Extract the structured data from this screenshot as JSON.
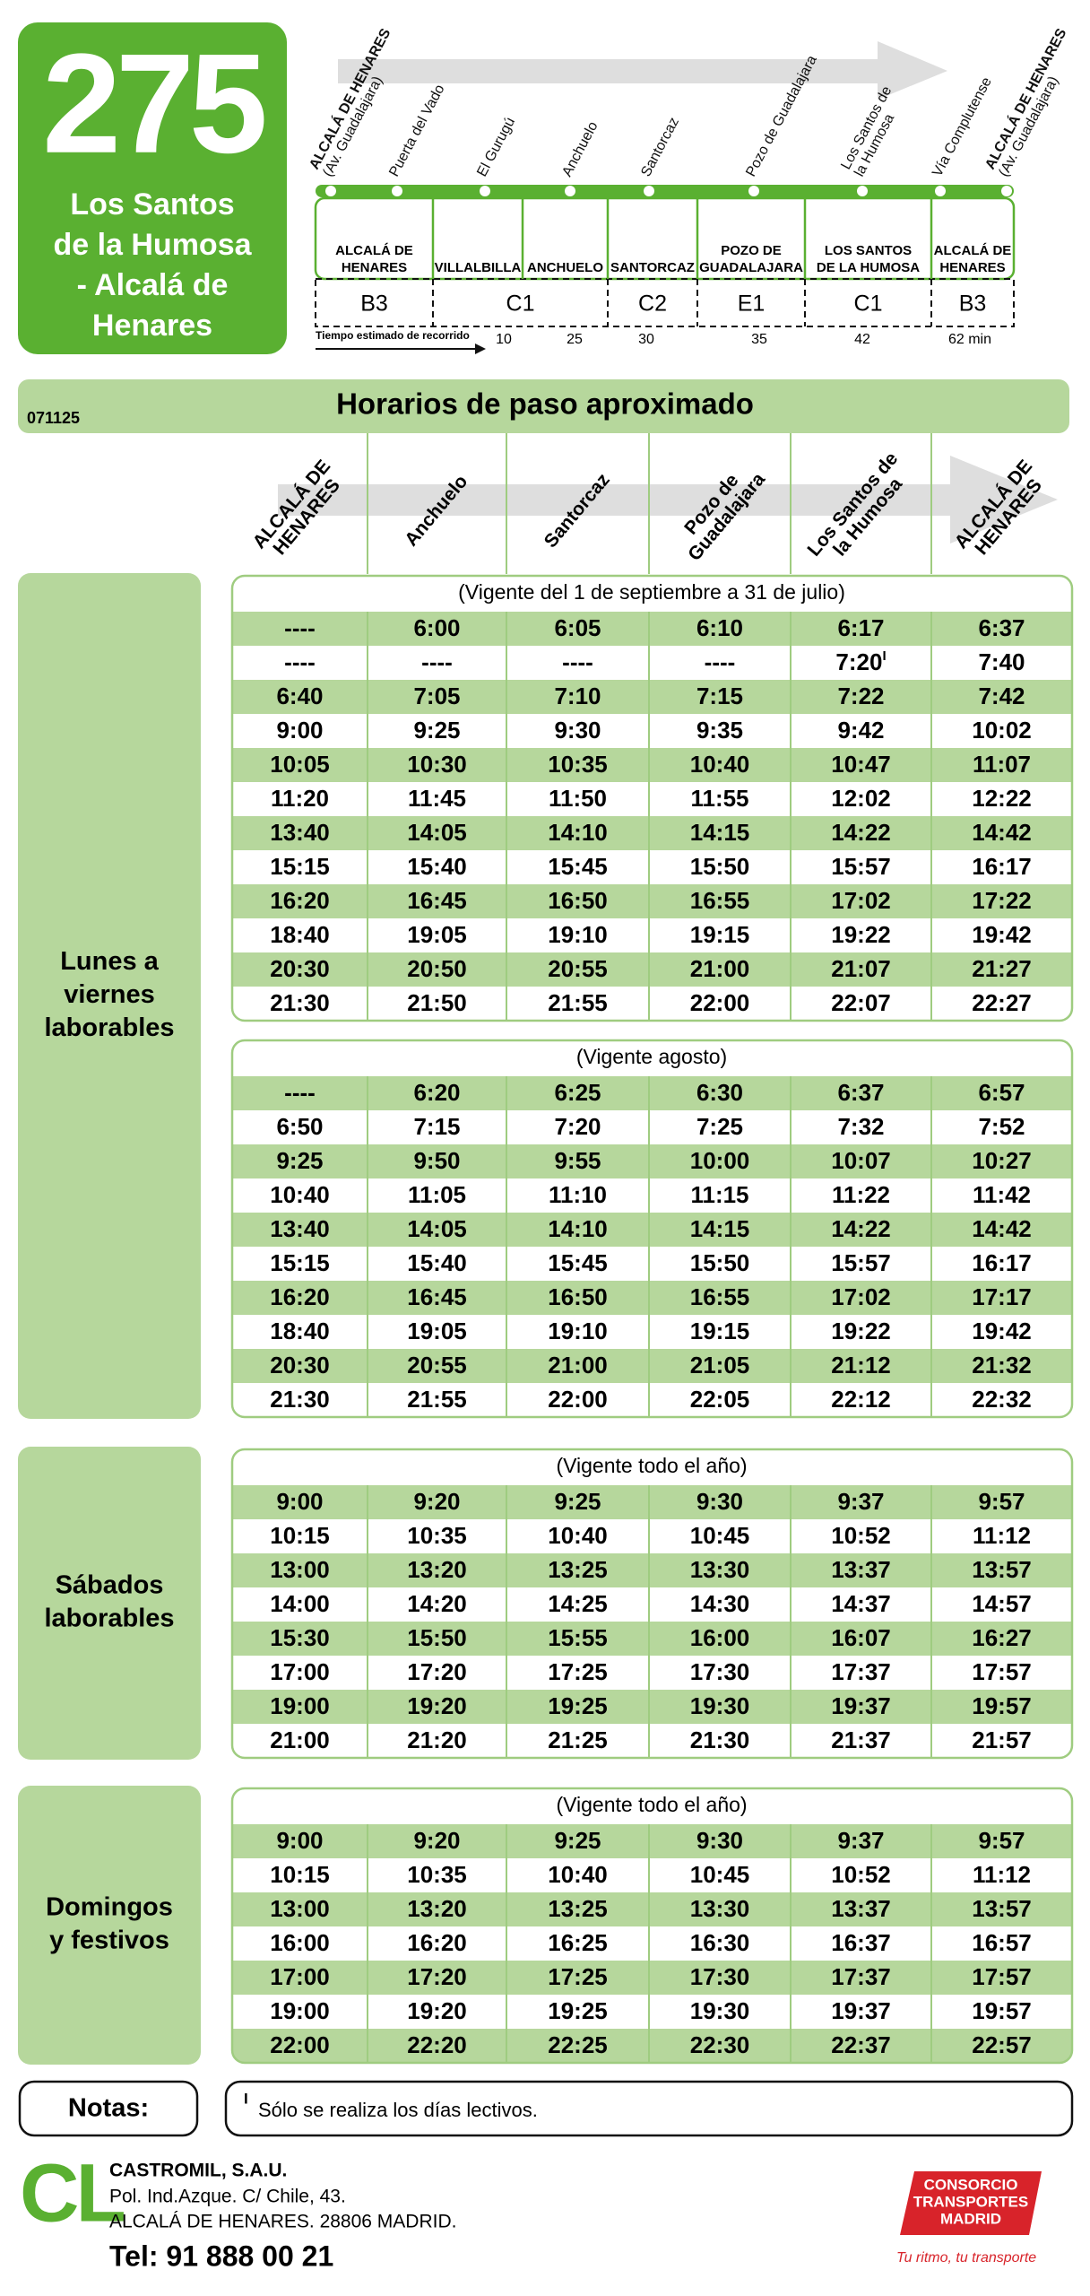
{
  "header": {
    "route": "275",
    "name_lines": [
      "Los Santos",
      "de la Humosa",
      "- Alcalá de",
      "Henares"
    ]
  },
  "route_map": {
    "stops": [
      [
        "ALCALÁ DE HENARES",
        "(Av. Guadalajara)"
      ],
      [
        "Puerta del Vado"
      ],
      [
        "El Gurugú"
      ],
      [
        "Anchuelo"
      ],
      [
        "Santorcaz"
      ],
      [
        "Pozo de Guadalajara"
      ],
      [
        "Los Santos de",
        "la Humosa"
      ],
      [
        "Vía Complutense"
      ],
      [
        "ALCALÁ DE HENARES",
        "(Av. Guadalajara)"
      ]
    ],
    "zones": [
      {
        "code": "B3",
        "towns": [
          [
            "ALCALÁ DE",
            "HENARES"
          ]
        ]
      },
      {
        "code": "C1",
        "towns": [
          [
            "VILLALBILLA"
          ],
          [
            "ANCHUELO"
          ]
        ]
      },
      {
        "code": "C2",
        "towns": [
          [
            "SANTORCAZ"
          ]
        ]
      },
      {
        "code": "E1",
        "towns": [
          [
            "POZO DE",
            "GUADALAJARA"
          ]
        ]
      },
      {
        "code": "C1",
        "towns": [
          [
            "LOS SANTOS",
            "DE LA HUMOSA"
          ]
        ]
      },
      {
        "code": "B3",
        "towns": [
          [
            "ALCALÁ DE",
            "HENARES"
          ]
        ]
      }
    ],
    "travel_time_label": "Tiempo estimado de recorrido",
    "travel_times": [
      "10",
      "25",
      "30",
      "35",
      "42",
      "62 min"
    ]
  },
  "schedule": {
    "title": "Horarios de paso aproximado",
    "code": "071125",
    "columns": [
      [
        "ALCALÁ DE",
        "HENARES"
      ],
      [
        "Anchuelo"
      ],
      [
        "Santorcaz"
      ],
      [
        "Pozo de",
        "Guadalajara"
      ],
      [
        "Los Santos de",
        "la Humosa"
      ],
      [
        "ALCALÁ DE",
        "HENARES"
      ]
    ],
    "sections": [
      {
        "label": [
          "Lunes a",
          "viernes",
          "laborables"
        ],
        "blocks": [
          {
            "validity": "(Vigente del 1 de septiembre a 31 de julio)",
            "rows": [
              [
                "----",
                "6:00",
                "6:05",
                "6:10",
                "6:17",
                "6:37"
              ],
              [
                "----",
                "----",
                "----",
                "----",
                {
                  "time": "7:20",
                  "note": "I"
                },
                "7:40"
              ],
              [
                "6:40",
                "7:05",
                "7:10",
                "7:15",
                "7:22",
                "7:42"
              ],
              [
                "9:00",
                "9:25",
                "9:30",
                "9:35",
                "9:42",
                "10:02"
              ],
              [
                "10:05",
                "10:30",
                "10:35",
                "10:40",
                "10:47",
                "11:07"
              ],
              [
                "11:20",
                "11:45",
                "11:50",
                "11:55",
                "12:02",
                "12:22"
              ],
              [
                "13:40",
                "14:05",
                "14:10",
                "14:15",
                "14:22",
                "14:42"
              ],
              [
                "15:15",
                "15:40",
                "15:45",
                "15:50",
                "15:57",
                "16:17"
              ],
              [
                "16:20",
                "16:45",
                "16:50",
                "16:55",
                "17:02",
                "17:22"
              ],
              [
                "18:40",
                "19:05",
                "19:10",
                "19:15",
                "19:22",
                "19:42"
              ],
              [
                "20:30",
                "20:50",
                "20:55",
                "21:00",
                "21:07",
                "21:27"
              ],
              [
                "21:30",
                "21:50",
                "21:55",
                "22:00",
                "22:07",
                "22:27"
              ]
            ]
          },
          {
            "validity": "(Vigente agosto)",
            "rows": [
              [
                "----",
                "6:20",
                "6:25",
                "6:30",
                "6:37",
                "6:57"
              ],
              [
                "6:50",
                "7:15",
                "7:20",
                "7:25",
                "7:32",
                "7:52"
              ],
              [
                "9:25",
                "9:50",
                "9:55",
                "10:00",
                "10:07",
                "10:27"
              ],
              [
                "10:40",
                "11:05",
                "11:10",
                "11:15",
                "11:22",
                "11:42"
              ],
              [
                "13:40",
                "14:05",
                "14:10",
                "14:15",
                "14:22",
                "14:42"
              ],
              [
                "15:15",
                "15:40",
                "15:45",
                "15:50",
                "15:57",
                "16:17"
              ],
              [
                "16:20",
                "16:45",
                "16:50",
                "16:55",
                "17:02",
                "17:17"
              ],
              [
                "18:40",
                "19:05",
                "19:10",
                "19:15",
                "19:22",
                "19:42"
              ],
              [
                "20:30",
                "20:55",
                "21:00",
                "21:05",
                "21:12",
                "21:32"
              ],
              [
                "21:30",
                "21:55",
                "22:00",
                "22:05",
                "22:12",
                "22:32"
              ]
            ]
          }
        ]
      },
      {
        "label": [
          "Sábados",
          "laborables"
        ],
        "blocks": [
          {
            "validity": "(Vigente todo el año)",
            "rows": [
              [
                "9:00",
                "9:20",
                "9:25",
                "9:30",
                "9:37",
                "9:57"
              ],
              [
                "10:15",
                "10:35",
                "10:40",
                "10:45",
                "10:52",
                "11:12"
              ],
              [
                "13:00",
                "13:20",
                "13:25",
                "13:30",
                "13:37",
                "13:57"
              ],
              [
                "14:00",
                "14:20",
                "14:25",
                "14:30",
                "14:37",
                "14:57"
              ],
              [
                "15:30",
                "15:50",
                "15:55",
                "16:00",
                "16:07",
                "16:27"
              ],
              [
                "17:00",
                "17:20",
                "17:25",
                "17:30",
                "17:37",
                "17:57"
              ],
              [
                "19:00",
                "19:20",
                "19:25",
                "19:30",
                "19:37",
                "19:57"
              ],
              [
                "21:00",
                "21:20",
                "21:25",
                "21:30",
                "21:37",
                "21:57"
              ]
            ]
          }
        ]
      },
      {
        "label": [
          "Domingos",
          "y festivos"
        ],
        "blocks": [
          {
            "validity": "(Vigente todo el año)",
            "rows": [
              [
                "9:00",
                "9:20",
                "9:25",
                "9:30",
                "9:37",
                "9:57"
              ],
              [
                "10:15",
                "10:35",
                "10:40",
                "10:45",
                "10:52",
                "11:12"
              ],
              [
                "13:00",
                "13:20",
                "13:25",
                "13:30",
                "13:37",
                "13:57"
              ],
              [
                "16:00",
                "16:20",
                "16:25",
                "16:30",
                "16:37",
                "16:57"
              ],
              [
                "17:00",
                "17:20",
                "17:25",
                "17:30",
                "17:37",
                "17:57"
              ],
              [
                "19:00",
                "19:20",
                "19:25",
                "19:30",
                "19:37",
                "19:57"
              ],
              [
                "22:00",
                "22:20",
                "22:25",
                "22:30",
                "22:37",
                "22:57"
              ]
            ]
          }
        ]
      }
    ]
  },
  "notes": {
    "label": "Notas:",
    "items": [
      {
        "mark": "I",
        "text": "Sólo se realiza los días lectivos."
      }
    ]
  },
  "footer": {
    "operator_logo": "CL",
    "company": "CASTROMIL, S.A.U.",
    "address_lines": [
      "Pol. Ind.Azque. C/ Chile, 43.",
      "ALCALÁ DE HENARES. 28806 MADRID."
    ],
    "phone": "Tel: 91 888 00 21",
    "consorcio_lines": [
      "CONSORCIO",
      "TRANSPORTES",
      "MADRID"
    ],
    "tagline": "Tu ritmo, tu transporte"
  }
}
